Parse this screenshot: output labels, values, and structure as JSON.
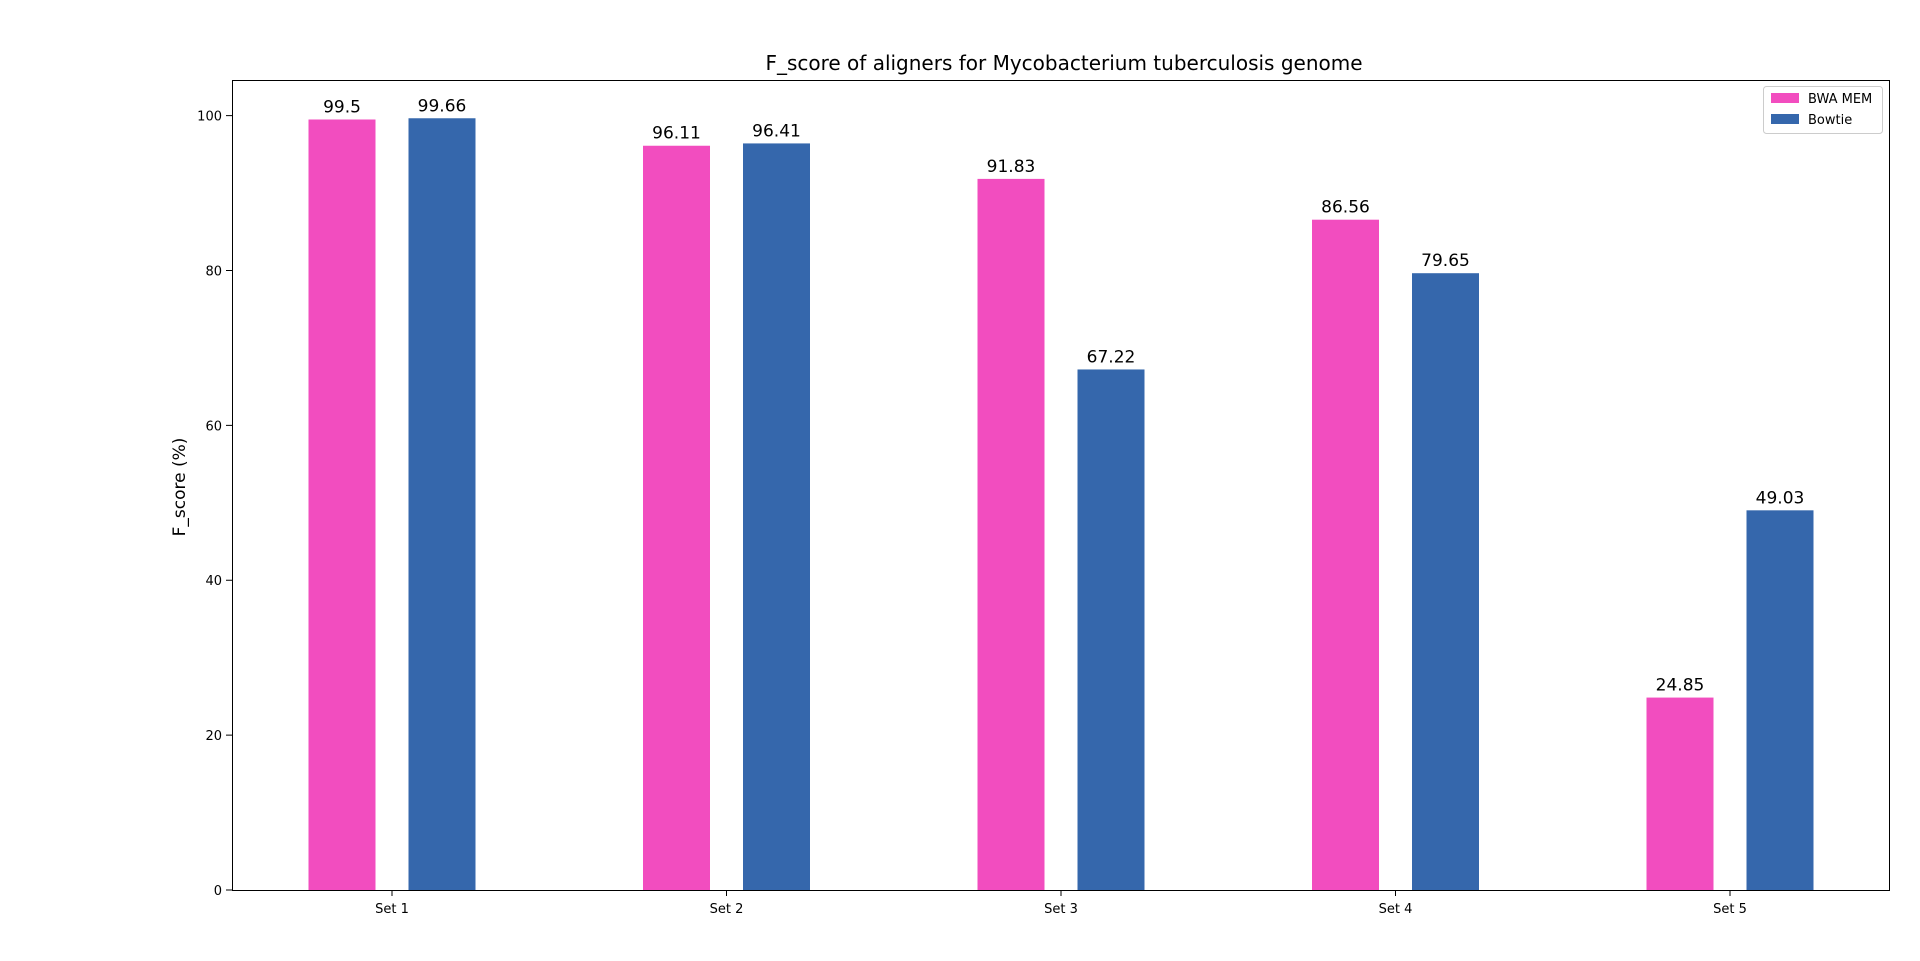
{
  "chart_data": {
    "type": "bar",
    "title": "F_score of aligners for Mycobacterium tuberculosis genome",
    "xlabel": "",
    "ylabel": "F_score (%)",
    "categories": [
      "Set 1",
      "Set 2",
      "Set 3",
      "Set 4",
      "Set 5"
    ],
    "series": [
      {
        "name": "BWA MEM",
        "color": "#f24dbf",
        "values": [
          99.5,
          96.11,
          91.83,
          86.56,
          24.85
        ],
        "labels": [
          "99.5",
          "96.11",
          "91.83",
          "86.56",
          "24.85"
        ]
      },
      {
        "name": "Bowtie",
        "color": "#3567ac",
        "values": [
          99.66,
          96.41,
          67.22,
          79.65,
          49.03
        ],
        "labels": [
          "99.66",
          "96.41",
          "67.22",
          "79.65",
          "49.03"
        ]
      }
    ],
    "ylim": [
      0,
      104.6
    ],
    "yticks": [
      0,
      20,
      40,
      60,
      80,
      100
    ],
    "ytick_labels": [
      "0",
      "20",
      "40",
      "60",
      "80",
      "100"
    ],
    "grid": false,
    "legend_position": "top-right"
  }
}
